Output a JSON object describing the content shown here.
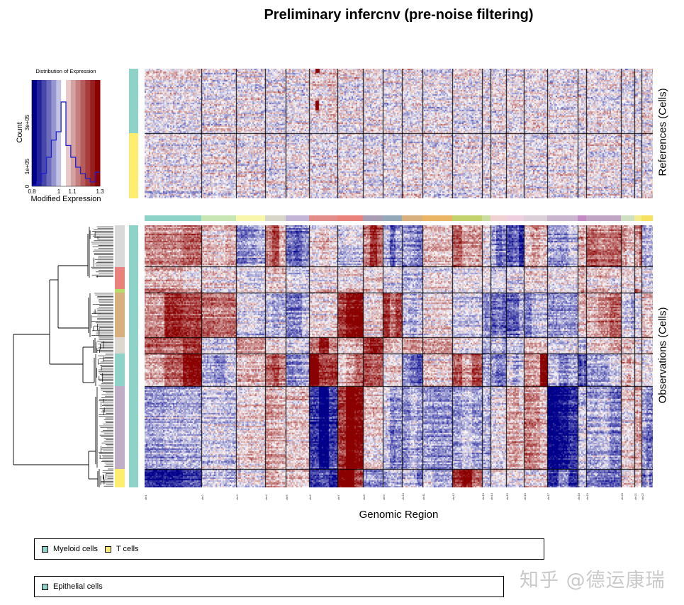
{
  "title": "Preliminary infercnv (pre-noise filtering)",
  "xlabel": "Genomic Region",
  "references_label": "References (Cells)",
  "observations_label": "Observations (Cells)",
  "legend_references": [
    {
      "label": "Myeloid cells",
      "color": "#8dd3c7"
    },
    {
      "label": "T cells",
      "color": "#ffed6f"
    }
  ],
  "legend_observations": [
    {
      "label": "Epithelial cells",
      "color": "#8dd3c7"
    }
  ],
  "watermark": "知乎 @德运康瑞",
  "colors": {
    "loss": "#00008b",
    "neutral": "#ffffff",
    "gain": "#8b0000"
  },
  "chart_data": [
    {
      "type": "bar",
      "title": "Distribution of Expression",
      "xlabel": "Modified Expression",
      "ylabel": "Count",
      "xlim": [
        0.8,
        1.3
      ],
      "x_ticks": [
        "0.8",
        "1",
        "1.1",
        "1.3"
      ],
      "y_ticks": [
        "0",
        "1e+05",
        "3e+05"
      ],
      "bin_start": 0.8,
      "bin_width": 0.0357,
      "counts": [
        6000,
        24000,
        72000,
        161000,
        256000,
        302000,
        467000,
        226000,
        161000,
        106000,
        70000,
        44000,
        24000,
        78000
      ]
    },
    {
      "type": "heatmap",
      "title": "Preliminary infercnv (pre-noise filtering)",
      "xlabel": "Genomic Region",
      "chromosomes": [
        {
          "name": "chr1",
          "color": "#8dd3c7"
        },
        {
          "name": "chr2",
          "color": "#c8e6b4"
        },
        {
          "name": "chr3",
          "color": "#f7f6aa"
        },
        {
          "name": "chr4",
          "color": "#d8d6c8"
        },
        {
          "name": "chr5",
          "color": "#c3b5d6"
        },
        {
          "name": "chr6",
          "color": "#e38d8a"
        },
        {
          "name": "chr7",
          "color": "#e8827a"
        },
        {
          "name": "chr8",
          "color": "#a99db3"
        },
        {
          "name": "chr9",
          "color": "#93a9b9"
        },
        {
          "name": "chr10",
          "color": "#d8b07d"
        },
        {
          "name": "chr11",
          "color": "#eab564"
        },
        {
          "name": "chr12",
          "color": "#c4d26e"
        },
        {
          "name": "chr13",
          "color": "#cbdca0"
        },
        {
          "name": "chr14",
          "color": "#f0d2d2"
        },
        {
          "name": "chr15",
          "color": "#eecfe0"
        },
        {
          "name": "chr16",
          "color": "#dcd0d8"
        },
        {
          "name": "chr17",
          "color": "#cbb6cf"
        },
        {
          "name": "chr18",
          "color": "#c38ac4"
        },
        {
          "name": "chr19",
          "color": "#c0a6c4"
        },
        {
          "name": "chr20",
          "color": "#cfe0c2"
        },
        {
          "name": "chr21",
          "color": "#f4ec88"
        },
        {
          "name": "chr22",
          "color": "#f5e25e"
        }
      ],
      "references": [
        {
          "group": "Myeloid cells",
          "color": "#8dd3c7",
          "cnv": [
            0,
            0,
            0,
            0,
            0,
            0.1,
            0,
            0,
            0,
            0,
            0,
            0,
            0,
            0,
            0,
            0,
            0,
            0,
            0,
            0,
            0,
            0
          ]
        },
        {
          "group": "T cells",
          "color": "#ffed6f",
          "cnv": [
            0,
            0,
            0,
            0,
            0,
            0,
            0,
            0,
            0,
            0,
            0,
            0,
            0,
            0,
            0,
            0,
            0,
            0,
            0,
            0,
            0,
            0
          ]
        }
      ],
      "observation_group": {
        "name": "Epithelial cells",
        "color": "#8dd3c7"
      },
      "observation_clusters": [
        {
          "color": "#d9d9d9",
          "cnv": [
            0.4,
            0.2,
            -0.3,
            0.5,
            -0.4,
            0.2,
            -0.1,
            0.7,
            -0.4,
            -0.5,
            0.2,
            0.4,
            0,
            -0.5,
            -0.6,
            0.3,
            -0.4,
            0.3,
            0.4,
            0.3,
            0.4,
            -0.3
          ]
        },
        {
          "color": "#e8827a",
          "cnv": [
            0.2,
            0.05,
            -0.1,
            0.1,
            -0.1,
            0,
            0.05,
            0.1,
            -0.1,
            -0.2,
            0.05,
            0,
            -0.05,
            -0.1,
            0,
            0.1,
            0,
            0.2,
            0.1,
            0.05,
            0.1,
            -0.1
          ]
        },
        {
          "color": "#b3de69",
          "cnv": [
            0.3,
            0,
            0,
            0,
            0,
            0.3,
            0.3,
            0.4,
            0,
            0,
            0,
            0,
            0,
            0,
            0,
            0,
            0,
            0.6,
            0.3,
            0,
            0.5,
            0
          ]
        },
        {
          "color": "#d8b07d",
          "cnv": [
            0.7,
            0.4,
            -0.1,
            -0.2,
            -0.3,
            0.1,
            0.9,
            0.1,
            0.6,
            -0.3,
            0.1,
            -0.1,
            -0.3,
            -0.5,
            -0.5,
            -0.3,
            -0.2,
            0.2,
            0.4,
            -0.2,
            0,
            0.1
          ]
        },
        {
          "color": "#dcd8d0",
          "cnv": [
            0.7,
            -0.2,
            0.3,
            0.1,
            -0.1,
            0.8,
            0.2,
            0.9,
            0.2,
            0.3,
            0.3,
            0,
            -0.2,
            -0.2,
            -0.2,
            0.5,
            -0.1,
            -0.3,
            0.2,
            0.1,
            0,
            0
          ]
        },
        {
          "color": "#8dd3c7",
          "cnv": [
            0.7,
            -0.3,
            0.2,
            0.5,
            -0.3,
            0.8,
            0.4,
            1.0,
            0.1,
            -0.4,
            0.2,
            0.5,
            -0.3,
            -0.6,
            -0.3,
            0.8,
            -0.4,
            -0.5,
            -0.2,
            0.2,
            0.1,
            0
          ]
        },
        {
          "color": "#bfaec6",
          "cnv": [
            -0.6,
            -0.1,
            0.1,
            0.3,
            0.3,
            -0.9,
            1.0,
            0.1,
            -0.3,
            -0.4,
            -0.3,
            -0.2,
            -0.2,
            0,
            0.2,
            0.4,
            -0.8,
            -0.1,
            -0.3,
            0.1,
            0.2,
            -0.3
          ]
        },
        {
          "color": "#ffed6f",
          "cnv": [
            -0.6,
            -0.2,
            0,
            0.2,
            0.1,
            -0.9,
            1.0,
            -0.4,
            -0.3,
            -0.4,
            -0.2,
            0.7,
            -0.2,
            0,
            0,
            0.1,
            -0.8,
            -0.1,
            -0.3,
            0.1,
            0.2,
            -0.4
          ]
        }
      ]
    }
  ]
}
